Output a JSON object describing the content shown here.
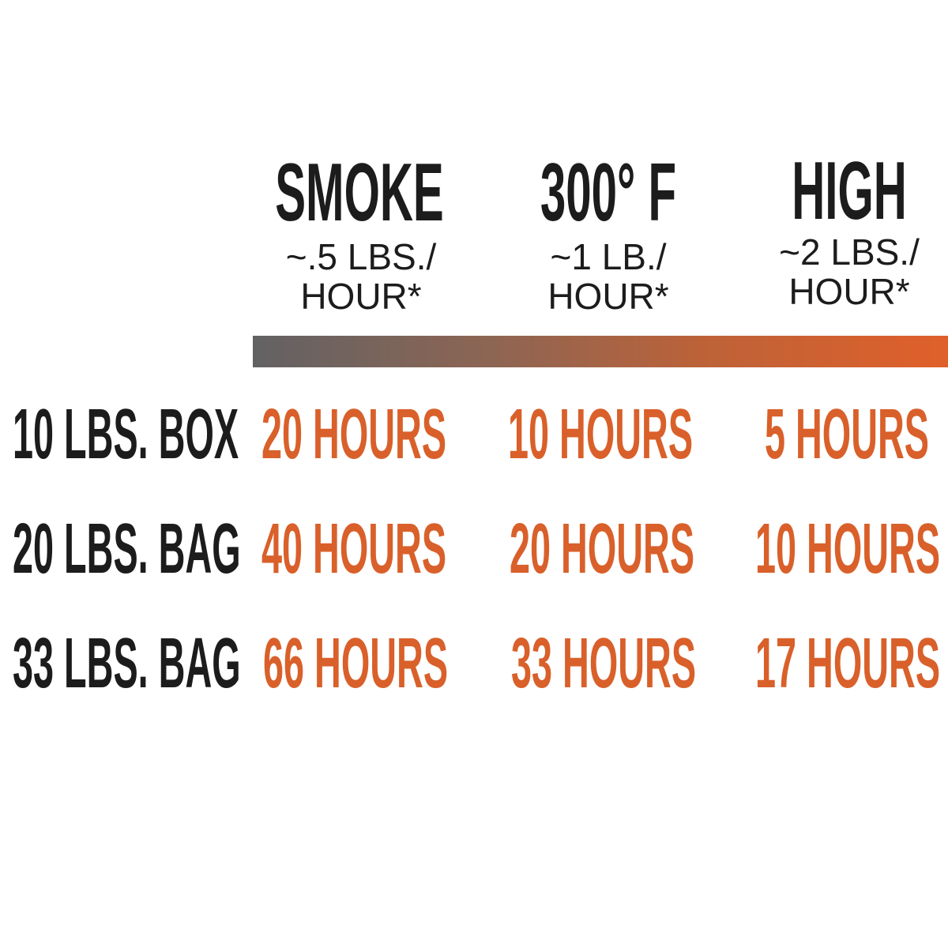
{
  "columns": [
    {
      "title": "SMOKE",
      "rate_line1": "~.5 LBS./",
      "rate_line2": "HOUR*"
    },
    {
      "title": "300° F",
      "rate_line1": "~1 LB./",
      "rate_line2": "HOUR*"
    },
    {
      "title": "HIGH",
      "rate_line1": "~2 LBS./",
      "rate_line2": "HOUR*"
    }
  ],
  "colors": {
    "accent": "#d9602a",
    "text": "#1c1c1c",
    "bar_start": "#626264",
    "bar_end": "#e0602a"
  },
  "rows": [
    {
      "label": "10 LBS. BOX",
      "values": [
        "20 HOURS",
        "10 HOURS",
        "5 HOURS"
      ]
    },
    {
      "label": "20 LBS. BAG",
      "values": [
        "40 HOURS",
        "20 HOURS",
        "10 HOURS"
      ]
    },
    {
      "label": "33 LBS. BAG",
      "values": [
        "66 HOURS",
        "33 HOURS",
        "17 HOURS"
      ]
    }
  ]
}
